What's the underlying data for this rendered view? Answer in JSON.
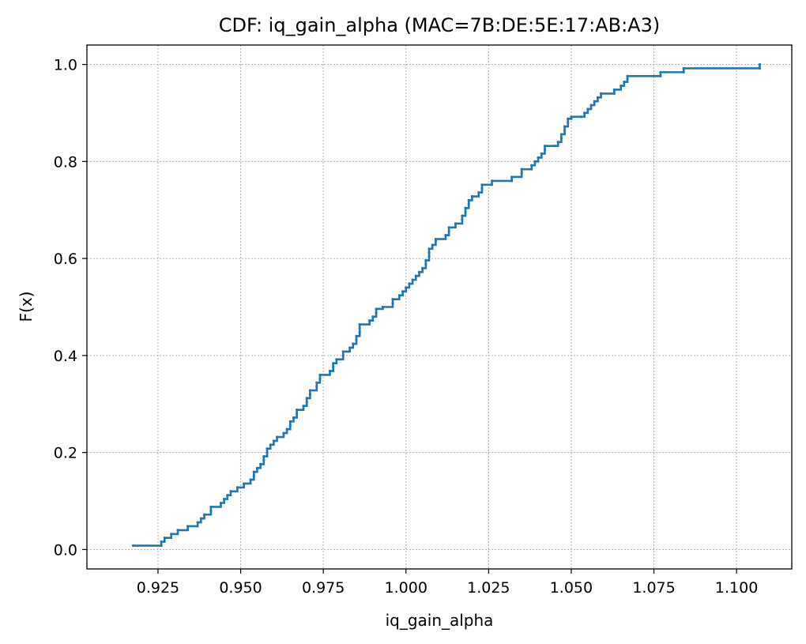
{
  "chart_data": {
    "type": "line",
    "title": "CDF: iq_gain_alpha (MAC=7B:DE:5E:17:AB:A3)",
    "xlabel": "iq_gain_alpha",
    "ylabel": "F(x)",
    "xlim": [
      0.9035,
      1.1167
    ],
    "ylim": [
      -0.04,
      1.04
    ],
    "xticks": [
      0.925,
      0.95,
      0.975,
      1.0,
      1.025,
      1.05,
      1.075,
      1.1
    ],
    "xtick_labels": [
      "0.925",
      "0.950",
      "0.975",
      "1.000",
      "1.025",
      "1.050",
      "1.075",
      "1.100"
    ],
    "yticks": [
      0.0,
      0.2,
      0.4,
      0.6,
      0.8,
      1.0
    ],
    "ytick_labels": [
      "0.0",
      "0.2",
      "0.4",
      "0.6",
      "0.8",
      "1.0"
    ],
    "grid": true,
    "series": [
      {
        "color": "#1f77b4",
        "points": [
          [
            0.9175,
            0.008
          ],
          [
            0.926,
            0.008
          ],
          [
            0.926,
            0.016
          ],
          [
            0.927,
            0.024
          ],
          [
            0.929,
            0.032
          ],
          [
            0.931,
            0.04
          ],
          [
            0.934,
            0.048
          ],
          [
            0.937,
            0.056
          ],
          [
            0.938,
            0.064
          ],
          [
            0.939,
            0.072
          ],
          [
            0.941,
            0.08
          ],
          [
            0.941,
            0.088
          ],
          [
            0.944,
            0.096
          ],
          [
            0.945,
            0.104
          ],
          [
            0.946,
            0.112
          ],
          [
            0.947,
            0.12
          ],
          [
            0.949,
            0.128
          ],
          [
            0.951,
            0.136
          ],
          [
            0.953,
            0.144
          ],
          [
            0.954,
            0.152
          ],
          [
            0.954,
            0.16
          ],
          [
            0.955,
            0.168
          ],
          [
            0.956,
            0.176
          ],
          [
            0.957,
            0.184
          ],
          [
            0.957,
            0.192
          ],
          [
            0.958,
            0.2
          ],
          [
            0.958,
            0.208
          ],
          [
            0.959,
            0.216
          ],
          [
            0.96,
            0.224
          ],
          [
            0.961,
            0.232
          ],
          [
            0.963,
            0.24
          ],
          [
            0.964,
            0.248
          ],
          [
            0.965,
            0.256
          ],
          [
            0.965,
            0.264
          ],
          [
            0.966,
            0.272
          ],
          [
            0.967,
            0.28
          ],
          [
            0.967,
            0.288
          ],
          [
            0.969,
            0.296
          ],
          [
            0.97,
            0.304
          ],
          [
            0.97,
            0.312
          ],
          [
            0.971,
            0.32
          ],
          [
            0.971,
            0.328
          ],
          [
            0.973,
            0.336
          ],
          [
            0.973,
            0.344
          ],
          [
            0.974,
            0.352
          ],
          [
            0.974,
            0.36
          ],
          [
            0.977,
            0.368
          ],
          [
            0.978,
            0.376
          ],
          [
            0.978,
            0.384
          ],
          [
            0.979,
            0.392
          ],
          [
            0.981,
            0.4
          ],
          [
            0.981,
            0.408
          ],
          [
            0.983,
            0.416
          ],
          [
            0.984,
            0.424
          ],
          [
            0.985,
            0.432
          ],
          [
            0.985,
            0.44
          ],
          [
            0.986,
            0.448
          ],
          [
            0.986,
            0.456
          ],
          [
            0.986,
            0.464
          ],
          [
            0.989,
            0.472
          ],
          [
            0.99,
            0.48
          ],
          [
            0.991,
            0.488
          ],
          [
            0.991,
            0.496
          ],
          [
            0.993,
            0.5
          ],
          [
            0.996,
            0.508
          ],
          [
            0.996,
            0.516
          ],
          [
            0.998,
            0.524
          ],
          [
            0.999,
            0.532
          ],
          [
            1.0,
            0.54
          ],
          [
            1.001,
            0.548
          ],
          [
            1.002,
            0.556
          ],
          [
            1.003,
            0.564
          ],
          [
            1.004,
            0.572
          ],
          [
            1.005,
            0.58
          ],
          [
            1.006,
            0.588
          ],
          [
            1.006,
            0.596
          ],
          [
            1.007,
            0.604
          ],
          [
            1.007,
            0.612
          ],
          [
            1.007,
            0.62
          ],
          [
            1.008,
            0.628
          ],
          [
            1.009,
            0.636
          ],
          [
            1.009,
            0.64
          ],
          [
            1.012,
            0.648
          ],
          [
            1.013,
            0.656
          ],
          [
            1.013,
            0.664
          ],
          [
            1.015,
            0.672
          ],
          [
            1.017,
            0.68
          ],
          [
            1.017,
            0.688
          ],
          [
            1.018,
            0.696
          ],
          [
            1.018,
            0.704
          ],
          [
            1.019,
            0.712
          ],
          [
            1.019,
            0.72
          ],
          [
            1.02,
            0.728
          ],
          [
            1.022,
            0.736
          ],
          [
            1.023,
            0.744
          ],
          [
            1.023,
            0.752
          ],
          [
            1.026,
            0.752
          ],
          [
            1.026,
            0.76
          ],
          [
            1.032,
            0.76
          ],
          [
            1.032,
            0.768
          ],
          [
            1.035,
            0.776
          ],
          [
            1.035,
            0.784
          ],
          [
            1.038,
            0.784
          ],
          [
            1.038,
            0.792
          ],
          [
            1.039,
            0.8
          ],
          [
            1.04,
            0.808
          ],
          [
            1.041,
            0.816
          ],
          [
            1.042,
            0.824
          ],
          [
            1.042,
            0.832
          ],
          [
            1.045,
            0.832
          ],
          [
            1.046,
            0.84
          ],
          [
            1.047,
            0.848
          ],
          [
            1.047,
            0.856
          ],
          [
            1.048,
            0.864
          ],
          [
            1.048,
            0.872
          ],
          [
            1.049,
            0.88
          ],
          [
            1.049,
            0.888
          ],
          [
            1.05,
            0.888
          ],
          [
            1.05,
            0.892
          ],
          [
            1.053,
            0.892
          ],
          [
            1.054,
            0.9
          ],
          [
            1.055,
            0.908
          ],
          [
            1.056,
            0.916
          ],
          [
            1.057,
            0.924
          ],
          [
            1.058,
            0.932
          ],
          [
            1.059,
            0.94
          ],
          [
            1.063,
            0.94
          ],
          [
            1.063,
            0.948
          ],
          [
            1.065,
            0.956
          ],
          [
            1.066,
            0.964
          ],
          [
            1.067,
            0.97
          ],
          [
            1.067,
            0.976
          ],
          [
            1.077,
            0.976
          ],
          [
            1.077,
            0.984
          ],
          [
            1.084,
            0.984
          ],
          [
            1.084,
            0.992
          ],
          [
            1.107,
            0.992
          ],
          [
            1.107,
            1.0
          ]
        ]
      }
    ]
  }
}
